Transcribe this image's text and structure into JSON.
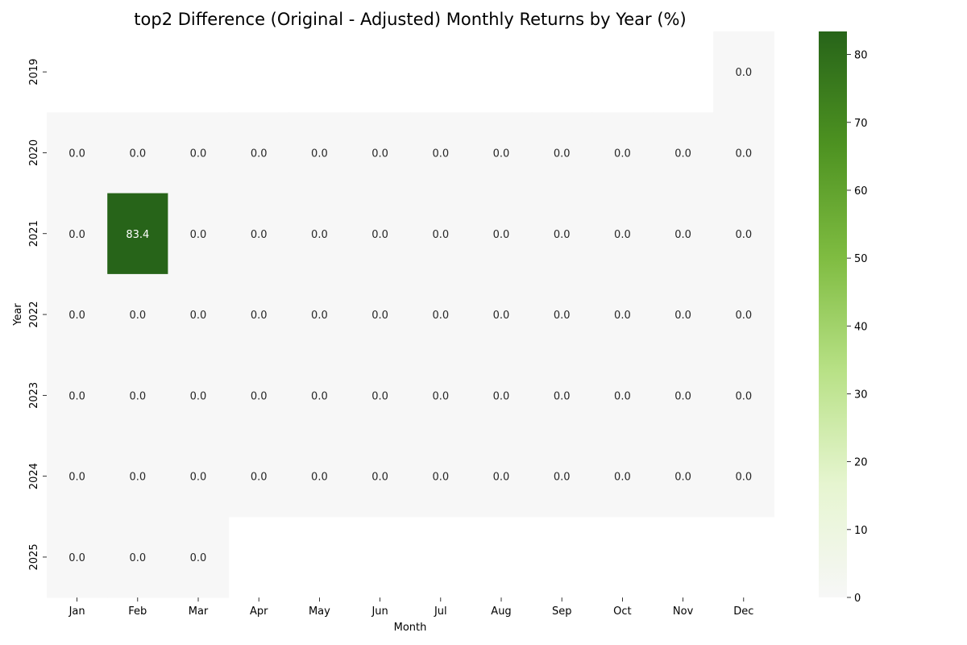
{
  "chart_data": {
    "type": "heatmap",
    "title": "top2 Difference (Original - Adjusted) Monthly Returns by Year (%)",
    "xlabel": "Month",
    "ylabel": "Year",
    "x_categories": [
      "Jan",
      "Feb",
      "Mar",
      "Apr",
      "May",
      "Jun",
      "Jul",
      "Aug",
      "Sep",
      "Oct",
      "Nov",
      "Dec"
    ],
    "y_categories": [
      "2019",
      "2020",
      "2021",
      "2022",
      "2023",
      "2024",
      "2025"
    ],
    "values": [
      [
        null,
        null,
        null,
        null,
        null,
        null,
        null,
        null,
        null,
        null,
        null,
        0.0
      ],
      [
        0.0,
        0.0,
        0.0,
        0.0,
        0.0,
        0.0,
        0.0,
        0.0,
        0.0,
        0.0,
        0.0,
        0.0
      ],
      [
        0.0,
        83.4,
        0.0,
        0.0,
        0.0,
        0.0,
        0.0,
        0.0,
        0.0,
        0.0,
        0.0,
        0.0
      ],
      [
        0.0,
        0.0,
        0.0,
        0.0,
        0.0,
        0.0,
        0.0,
        0.0,
        0.0,
        0.0,
        0.0,
        0.0
      ],
      [
        0.0,
        0.0,
        0.0,
        0.0,
        0.0,
        0.0,
        0.0,
        0.0,
        0.0,
        0.0,
        0.0,
        0.0
      ],
      [
        0.0,
        0.0,
        0.0,
        0.0,
        0.0,
        0.0,
        0.0,
        0.0,
        0.0,
        0.0,
        0.0,
        0.0
      ],
      [
        0.0,
        0.0,
        0.0,
        null,
        null,
        null,
        null,
        null,
        null,
        null,
        null,
        null
      ]
    ],
    "value_format": "0.0",
    "colorbar": {
      "range": [
        0,
        83.4
      ],
      "ticks": [
        0,
        10,
        20,
        30,
        40,
        50,
        60,
        70,
        80
      ],
      "colors": [
        "#f7f7f7",
        "#e6f5d0",
        "#b8e186",
        "#7fbc41",
        "#4d9221",
        "#276419"
      ]
    }
  }
}
